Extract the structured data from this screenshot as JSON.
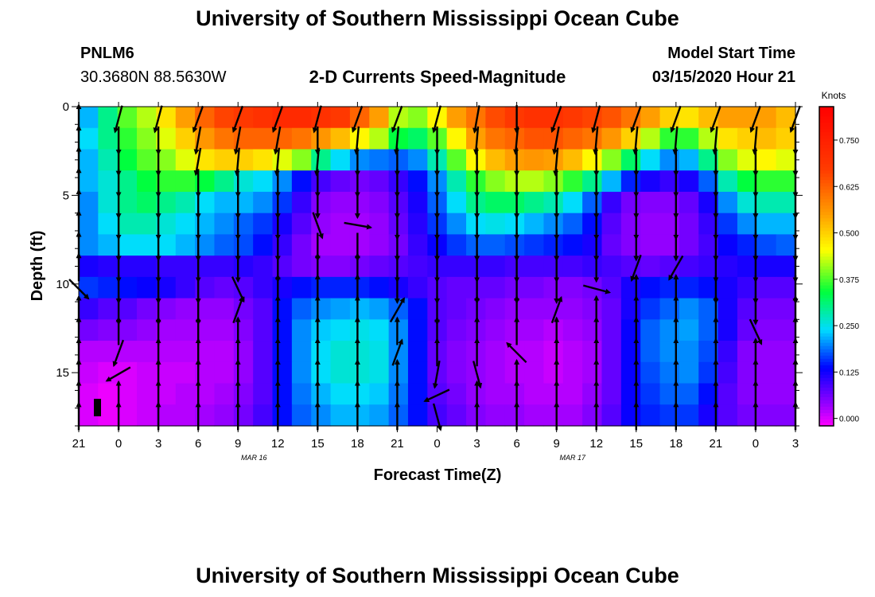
{
  "header": {
    "title": "University of Southern Mississippi Ocean Cube",
    "station": "PNLM6",
    "coords": "30.3680N 88.5630W",
    "subtitle": "2-D Currents Speed-Magnitude",
    "model_start_label": "Model Start Time",
    "model_start_value": "03/15/2020 Hour 21"
  },
  "footer": {
    "title": "University of Southern Mississippi Ocean Cube"
  },
  "chart_data": {
    "type": "heatmap",
    "title": "2-D Currents Speed-Magnitude",
    "xlabel": "Forecast Time(Z)",
    "ylabel": "Depth (ft)",
    "x_hours": [
      0,
      3,
      6,
      9,
      12,
      15,
      18,
      21,
      24,
      27,
      30,
      33,
      36,
      39,
      42,
      45,
      48,
      51,
      54
    ],
    "x_tick_labels": [
      "21",
      "0",
      "3",
      "6",
      "9",
      "12",
      "15",
      "18",
      "21",
      "0",
      "3",
      "6",
      "9",
      "12",
      "15",
      "18",
      "21",
      "0",
      "3"
    ],
    "date_markers": [
      {
        "label": "MAR 16",
        "hour": 15
      },
      {
        "label": "MAR 17",
        "hour": 39
      }
    ],
    "y_ticks": [
      0,
      5,
      10,
      15
    ],
    "ylim": [
      0,
      18
    ],
    "y_inverted": true,
    "depths_ft": [
      0.5,
      1.7,
      2.9,
      4.1,
      5.3,
      6.5,
      7.7,
      8.9,
      10.1,
      11.3,
      12.5,
      13.7,
      14.9,
      16.1,
      17.3
    ],
    "speed_knots": [
      [
        0.22,
        0.3,
        0.38,
        0.42,
        0.48,
        0.55,
        0.62,
        0.66,
        0.68,
        0.7,
        0.72,
        0.72,
        0.7,
        0.68,
        0.62,
        0.55,
        0.42,
        0.4,
        0.46,
        0.55,
        0.6,
        0.65,
        0.68,
        0.7,
        0.7,
        0.68,
        0.66,
        0.64,
        0.6,
        0.55,
        0.5,
        0.48,
        0.52,
        0.55,
        0.55,
        0.55,
        0.52
      ],
      [
        0.24,
        0.3,
        0.36,
        0.4,
        0.44,
        0.5,
        0.56,
        0.6,
        0.62,
        0.62,
        0.62,
        0.6,
        0.56,
        0.52,
        0.46,
        0.42,
        0.34,
        0.32,
        0.38,
        0.46,
        0.55,
        0.6,
        0.62,
        0.64,
        0.64,
        0.62,
        0.6,
        0.56,
        0.5,
        0.42,
        0.36,
        0.36,
        0.42,
        0.48,
        0.5,
        0.52,
        0.5
      ],
      [
        0.22,
        0.28,
        0.34,
        0.38,
        0.4,
        0.44,
        0.48,
        0.5,
        0.5,
        0.48,
        0.44,
        0.4,
        0.3,
        0.24,
        0.2,
        0.19,
        0.18,
        0.2,
        0.28,
        0.38,
        0.46,
        0.52,
        0.55,
        0.56,
        0.55,
        0.52,
        0.46,
        0.4,
        0.32,
        0.24,
        0.2,
        0.22,
        0.3,
        0.4,
        0.44,
        0.46,
        0.44
      ],
      [
        0.22,
        0.26,
        0.3,
        0.34,
        0.36,
        0.36,
        0.34,
        0.3,
        0.26,
        0.24,
        0.2,
        0.14,
        0.09,
        0.07,
        0.06,
        0.07,
        0.1,
        0.14,
        0.2,
        0.28,
        0.36,
        0.4,
        0.42,
        0.42,
        0.4,
        0.36,
        0.3,
        0.22,
        0.15,
        0.12,
        0.1,
        0.12,
        0.18,
        0.28,
        0.34,
        0.36,
        0.36
      ],
      [
        0.2,
        0.26,
        0.3,
        0.32,
        0.3,
        0.28,
        0.24,
        0.22,
        0.22,
        0.2,
        0.16,
        0.1,
        0.05,
        0.04,
        0.04,
        0.05,
        0.08,
        0.12,
        0.18,
        0.24,
        0.3,
        0.32,
        0.32,
        0.3,
        0.28,
        0.24,
        0.18,
        0.1,
        0.06,
        0.05,
        0.05,
        0.07,
        0.12,
        0.2,
        0.26,
        0.28,
        0.28
      ],
      [
        0.2,
        0.24,
        0.28,
        0.28,
        0.26,
        0.24,
        0.22,
        0.2,
        0.18,
        0.16,
        0.12,
        0.08,
        0.04,
        0.03,
        0.03,
        0.04,
        0.07,
        0.11,
        0.16,
        0.2,
        0.24,
        0.25,
        0.24,
        0.22,
        0.2,
        0.18,
        0.14,
        0.08,
        0.05,
        0.04,
        0.04,
        0.06,
        0.1,
        0.16,
        0.2,
        0.22,
        0.22
      ],
      [
        0.2,
        0.22,
        0.24,
        0.24,
        0.24,
        0.22,
        0.2,
        0.18,
        0.17,
        0.14,
        0.1,
        0.06,
        0.03,
        0.03,
        0.03,
        0.04,
        0.06,
        0.1,
        0.13,
        0.16,
        0.18,
        0.18,
        0.17,
        0.16,
        0.15,
        0.14,
        0.12,
        0.07,
        0.05,
        0.04,
        0.04,
        0.06,
        0.09,
        0.13,
        0.15,
        0.17,
        0.18
      ],
      [
        0.12,
        0.11,
        0.11,
        0.11,
        0.1,
        0.1,
        0.1,
        0.1,
        0.11,
        0.1,
        0.08,
        0.06,
        0.05,
        0.05,
        0.06,
        0.07,
        0.08,
        0.09,
        0.1,
        0.1,
        0.1,
        0.1,
        0.09,
        0.09,
        0.09,
        0.09,
        0.1,
        0.09,
        0.08,
        0.07,
        0.08,
        0.09,
        0.1,
        0.11,
        0.12,
        0.12,
        0.12
      ],
      [
        0.16,
        0.15,
        0.14,
        0.13,
        0.12,
        0.1,
        0.08,
        0.07,
        0.08,
        0.1,
        0.12,
        0.14,
        0.15,
        0.15,
        0.15,
        0.14,
        0.12,
        0.1,
        0.08,
        0.07,
        0.07,
        0.07,
        0.06,
        0.06,
        0.05,
        0.05,
        0.06,
        0.08,
        0.12,
        0.14,
        0.15,
        0.15,
        0.14,
        0.12,
        0.1,
        0.08,
        0.08
      ],
      [
        0.1,
        0.08,
        0.08,
        0.06,
        0.05,
        0.04,
        0.04,
        0.04,
        0.06,
        0.08,
        0.14,
        0.18,
        0.2,
        0.21,
        0.22,
        0.21,
        0.18,
        0.14,
        0.08,
        0.07,
        0.06,
        0.05,
        0.04,
        0.04,
        0.04,
        0.04,
        0.05,
        0.07,
        0.12,
        0.16,
        0.18,
        0.2,
        0.18,
        0.12,
        0.08,
        0.06,
        0.06
      ],
      [
        0.06,
        0.05,
        0.05,
        0.04,
        0.03,
        0.03,
        0.03,
        0.03,
        0.05,
        0.08,
        0.14,
        0.2,
        0.23,
        0.24,
        0.25,
        0.24,
        0.2,
        0.14,
        0.08,
        0.06,
        0.05,
        0.04,
        0.03,
        0.03,
        0.02,
        0.03,
        0.04,
        0.07,
        0.13,
        0.18,
        0.2,
        0.21,
        0.18,
        0.12,
        0.07,
        0.05,
        0.05
      ],
      [
        0.02,
        0.02,
        0.02,
        0.02,
        0.02,
        0.02,
        0.02,
        0.02,
        0.04,
        0.08,
        0.14,
        0.2,
        0.24,
        0.26,
        0.26,
        0.25,
        0.2,
        0.14,
        0.07,
        0.05,
        0.04,
        0.03,
        0.02,
        0.02,
        0.01,
        0.02,
        0.03,
        0.07,
        0.13,
        0.18,
        0.2,
        0.2,
        0.17,
        0.1,
        0.05,
        0.04,
        0.04
      ],
      [
        0.01,
        0.0,
        0.0,
        0.01,
        0.01,
        0.01,
        0.02,
        0.02,
        0.04,
        0.08,
        0.14,
        0.2,
        0.24,
        0.26,
        0.26,
        0.25,
        0.2,
        0.14,
        0.07,
        0.05,
        0.04,
        0.03,
        0.02,
        0.02,
        0.01,
        0.02,
        0.03,
        0.07,
        0.13,
        0.17,
        0.19,
        0.2,
        0.16,
        0.09,
        0.05,
        0.04,
        0.04
      ],
      [
        0.0,
        -0.01,
        0.0,
        0.01,
        0.01,
        0.02,
        0.02,
        0.03,
        0.05,
        0.08,
        0.14,
        0.19,
        0.22,
        0.24,
        0.24,
        0.23,
        0.19,
        0.14,
        0.08,
        0.06,
        0.04,
        0.03,
        0.03,
        0.02,
        0.02,
        0.02,
        0.04,
        0.07,
        0.13,
        0.16,
        0.18,
        0.18,
        0.14,
        0.08,
        0.05,
        0.04,
        0.04
      ],
      [
        0.0,
        -0.01,
        0.0,
        0.01,
        0.02,
        0.02,
        0.03,
        0.04,
        0.06,
        0.09,
        0.14,
        0.18,
        0.2,
        0.22,
        0.22,
        0.21,
        0.18,
        0.14,
        0.09,
        0.07,
        0.05,
        0.04,
        0.04,
        0.03,
        0.03,
        0.03,
        0.05,
        0.08,
        0.13,
        0.15,
        0.16,
        0.16,
        0.12,
        0.08,
        0.06,
        0.05,
        0.05
      ]
    ],
    "arrow_hours": [
      0,
      3,
      6,
      9,
      12,
      15,
      18,
      21,
      24,
      27,
      30,
      33,
      36,
      39,
      42,
      45,
      48,
      51,
      54
    ],
    "arrow_depths_ft": [
      0.5,
      1.7,
      2.9,
      4.1,
      5.3,
      6.5,
      7.7,
      8.9,
      10.1,
      11.3,
      12.5,
      13.7,
      14.9,
      16.1,
      17.3
    ],
    "arrow_directions_deg": [
      [
        0,
        195,
        195,
        200,
        200,
        200,
        195,
        200,
        200,
        195,
        190,
        180,
        200,
        195,
        200,
        200,
        200,
        200,
        200
      ],
      [
        0,
        180,
        180,
        190,
        190,
        190,
        180,
        185,
        185,
        180,
        185,
        185,
        190,
        185,
        185,
        185,
        185,
        185,
        180
      ],
      [
        0,
        180,
        180,
        190,
        185,
        185,
        185,
        180,
        180,
        180,
        180,
        180,
        185,
        180,
        180,
        180,
        180,
        180,
        180
      ],
      [
        0,
        180,
        180,
        180,
        180,
        180,
        180,
        180,
        180,
        180,
        180,
        180,
        180,
        180,
        180,
        180,
        180,
        180,
        180
      ],
      [
        0,
        180,
        180,
        180,
        180,
        180,
        180,
        180,
        180,
        180,
        180,
        180,
        180,
        180,
        180,
        180,
        180,
        180,
        180
      ],
      [
        0,
        180,
        180,
        180,
        180,
        180,
        160,
        100,
        180,
        180,
        180,
        180,
        180,
        180,
        180,
        180,
        180,
        180,
        180
      ],
      [
        0,
        180,
        180,
        180,
        180,
        180,
        180,
        180,
        180,
        180,
        180,
        180,
        180,
        180,
        180,
        180,
        180,
        180,
        180
      ],
      [
        0,
        180,
        180,
        180,
        180,
        180,
        0,
        0,
        180,
        180,
        180,
        180,
        180,
        180,
        200,
        210,
        180,
        180,
        180
      ],
      [
        135,
        180,
        180,
        180,
        155,
        0,
        0,
        0,
        180,
        180,
        180,
        180,
        180,
        105,
        0,
        0,
        180,
        180,
        180
      ],
      [
        0,
        180,
        180,
        180,
        20,
        0,
        0,
        0,
        30,
        180,
        0,
        0,
        20,
        0,
        0,
        0,
        0,
        180,
        0
      ],
      [
        0,
        0,
        0,
        0,
        0,
        0,
        0,
        0,
        0,
        0,
        0,
        0,
        0,
        0,
        0,
        0,
        0,
        155,
        0
      ],
      [
        0,
        200,
        0,
        0,
        0,
        0,
        0,
        0,
        20,
        0,
        0,
        315,
        0,
        0,
        0,
        0,
        0,
        0,
        0
      ],
      [
        0,
        240,
        0,
        0,
        0,
        0,
        0,
        0,
        0,
        190,
        165,
        0,
        0,
        0,
        0,
        0,
        0,
        0,
        0
      ],
      [
        0,
        0,
        0,
        0,
        0,
        0,
        0,
        0,
        0,
        245,
        0,
        0,
        0,
        0,
        0,
        0,
        0,
        0,
        0
      ],
      [
        0,
        0,
        0,
        0,
        0,
        0,
        0,
        0,
        0,
        165,
        0,
        0,
        0,
        0,
        0,
        0,
        0,
        0,
        0
      ]
    ],
    "colorbar": {
      "label": "Knots",
      "min": -0.02,
      "max": 0.84,
      "ticks": [
        "0.750",
        "0.625",
        "0.500",
        "0.375",
        "0.250",
        "0.125",
        "0.000"
      ],
      "tick_values": [
        0.75,
        0.625,
        0.5,
        0.375,
        0.25,
        0.125,
        0.0
      ]
    }
  }
}
